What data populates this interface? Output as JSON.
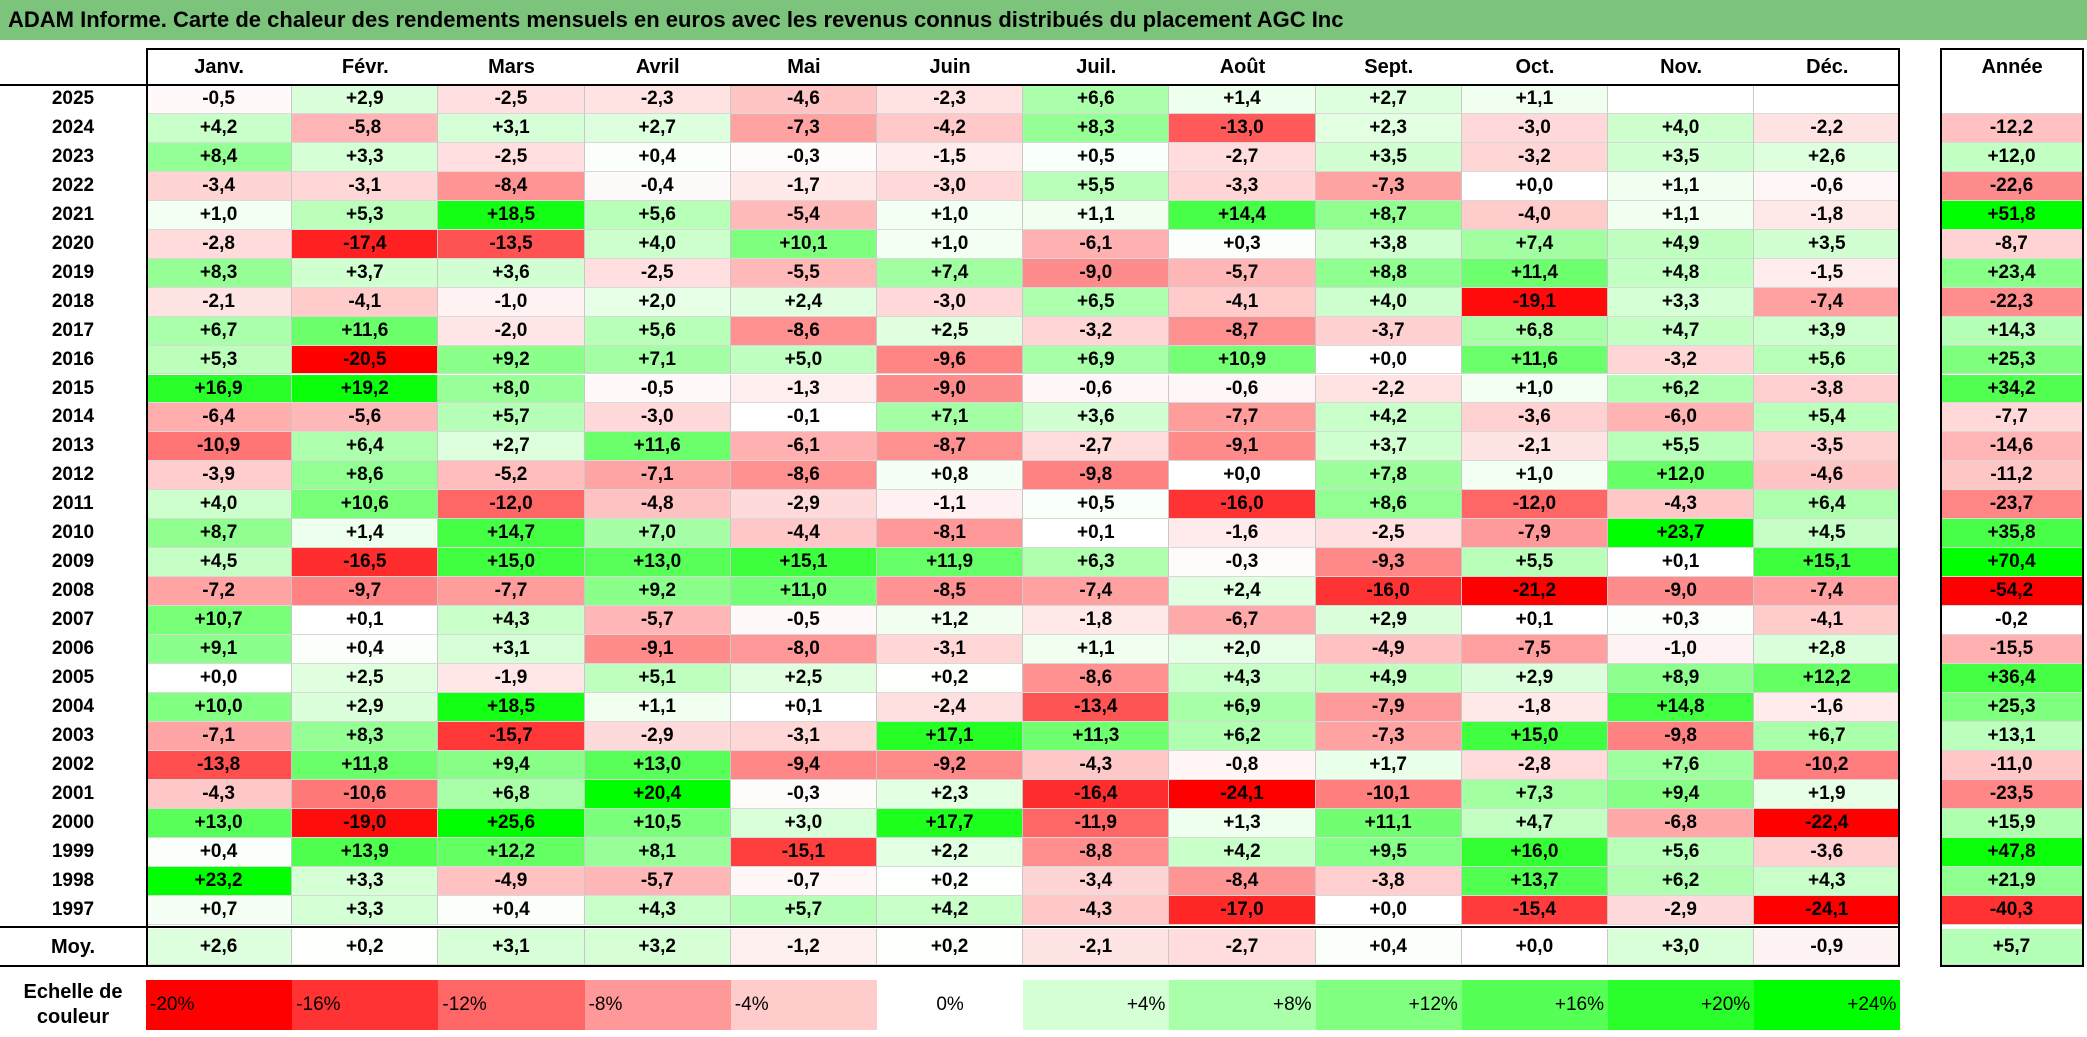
{
  "title": "ADAM Informe. Carte de chaleur des rendements mensuels en euros avec les revenus connus distribués du placement AGC Inc",
  "chart_data": {
    "type": "heatmap",
    "title": "ADAM Informe. Carte de chaleur des rendements mensuels en euros avec les revenus connus distribués du placement AGC Inc",
    "months": [
      "Janv.",
      "Févr.",
      "Mars",
      "Avril",
      "Mai",
      "Juin",
      "Juil.",
      "Août",
      "Sept.",
      "Oct.",
      "Nov.",
      "Déc."
    ],
    "year_header": "Année",
    "rows": [
      {
        "year": "2025",
        "values": [
          "-0,5",
          "+2,9",
          "-2,5",
          "-2,3",
          "-4,6",
          "-2,3",
          "+6,6",
          "+1,4",
          "+2,7",
          "+1,1",
          "",
          ""
        ],
        "annual": ""
      },
      {
        "year": "2024",
        "values": [
          "+4,2",
          "-5,8",
          "+3,1",
          "+2,7",
          "-7,3",
          "-4,2",
          "+8,3",
          "-13,0",
          "+2,3",
          "-3,0",
          "+4,0",
          "-2,2"
        ],
        "annual": "-12,2"
      },
      {
        "year": "2023",
        "values": [
          "+8,4",
          "+3,3",
          "-2,5",
          "+0,4",
          "-0,3",
          "-1,5",
          "+0,5",
          "-2,7",
          "+3,5",
          "-3,2",
          "+3,5",
          "+2,6"
        ],
        "annual": "+12,0"
      },
      {
        "year": "2022",
        "values": [
          "-3,4",
          "-3,1",
          "-8,4",
          "-0,4",
          "-1,7",
          "-3,0",
          "+5,5",
          "-3,3",
          "-7,3",
          "+0,0",
          "+1,1",
          "-0,6"
        ],
        "annual": "-22,6"
      },
      {
        "year": "2021",
        "values": [
          "+1,0",
          "+5,3",
          "+18,5",
          "+5,6",
          "-5,4",
          "+1,0",
          "+1,1",
          "+14,4",
          "+8,7",
          "-4,0",
          "+1,1",
          "-1,8"
        ],
        "annual": "+51,8"
      },
      {
        "year": "2020",
        "values": [
          "-2,8",
          "-17,4",
          "-13,5",
          "+4,0",
          "+10,1",
          "+1,0",
          "-6,1",
          "+0,3",
          "+3,8",
          "+7,4",
          "+4,9",
          "+3,5"
        ],
        "annual": "-8,7"
      },
      {
        "year": "2019",
        "values": [
          "+8,3",
          "+3,7",
          "+3,6",
          "-2,5",
          "-5,5",
          "+7,4",
          "-9,0",
          "-5,7",
          "+8,8",
          "+11,4",
          "+4,8",
          "-1,5"
        ],
        "annual": "+23,4"
      },
      {
        "year": "2018",
        "values": [
          "-2,1",
          "-4,1",
          "-1,0",
          "+2,0",
          "+2,4",
          "-3,0",
          "+6,5",
          "-4,1",
          "+4,0",
          "-19,1",
          "+3,3",
          "-7,4"
        ],
        "annual": "-22,3"
      },
      {
        "year": "2017",
        "values": [
          "+6,7",
          "+11,6",
          "-2,0",
          "+5,6",
          "-8,6",
          "+2,5",
          "-3,2",
          "-8,7",
          "-3,7",
          "+6,8",
          "+4,7",
          "+3,9"
        ],
        "annual": "+14,3"
      },
      {
        "year": "2016",
        "values": [
          "+5,3",
          "-20,5",
          "+9,2",
          "+7,1",
          "+5,0",
          "-9,6",
          "+6,9",
          "+10,9",
          "+0,0",
          "+11,6",
          "-3,2",
          "+5,6"
        ],
        "annual": "+25,3"
      },
      {
        "year": "2015",
        "values": [
          "+16,9",
          "+19,2",
          "+8,0",
          "-0,5",
          "-1,3",
          "-9,0",
          "-0,6",
          "-0,6",
          "-2,2",
          "+1,0",
          "+6,2",
          "-3,8"
        ],
        "annual": "+34,2"
      },
      {
        "year": "2014",
        "values": [
          "-6,4",
          "-5,6",
          "+5,7",
          "-3,0",
          "-0,1",
          "+7,1",
          "+3,6",
          "-7,7",
          "+4,2",
          "-3,6",
          "-6,0",
          "+5,4"
        ],
        "annual": "-7,7"
      },
      {
        "year": "2013",
        "values": [
          "-10,9",
          "+6,4",
          "+2,7",
          "+11,6",
          "-6,1",
          "-8,7",
          "-2,7",
          "-9,1",
          "+3,7",
          "-2,1",
          "+5,5",
          "-3,5"
        ],
        "annual": "-14,6"
      },
      {
        "year": "2012",
        "values": [
          "-3,9",
          "+8,6",
          "-5,2",
          "-7,1",
          "-8,6",
          "+0,8",
          "-9,8",
          "+0,0",
          "+7,8",
          "+1,0",
          "+12,0",
          "-4,6"
        ],
        "annual": "-11,2"
      },
      {
        "year": "2011",
        "values": [
          "+4,0",
          "+10,6",
          "-12,0",
          "-4,8",
          "-2,9",
          "-1,1",
          "+0,5",
          "-16,0",
          "+8,6",
          "-12,0",
          "-4,3",
          "+6,4"
        ],
        "annual": "-23,7"
      },
      {
        "year": "2010",
        "values": [
          "+8,7",
          "+1,4",
          "+14,7",
          "+7,0",
          "-4,4",
          "-8,1",
          "+0,1",
          "-1,6",
          "-2,5",
          "-7,9",
          "+23,7",
          "+4,5"
        ],
        "annual": "+35,8"
      },
      {
        "year": "2009",
        "values": [
          "+4,5",
          "-16,5",
          "+15,0",
          "+13,0",
          "+15,1",
          "+11,9",
          "+6,3",
          "-0,3",
          "-9,3",
          "+5,5",
          "+0,1",
          "+15,1"
        ],
        "annual": "+70,4"
      },
      {
        "year": "2008",
        "values": [
          "-7,2",
          "-9,7",
          "-7,7",
          "+9,2",
          "+11,0",
          "-8,5",
          "-7,4",
          "+2,4",
          "-16,0",
          "-21,2",
          "-9,0",
          "-7,4"
        ],
        "annual": "-54,2"
      },
      {
        "year": "2007",
        "values": [
          "+10,7",
          "+0,1",
          "+4,3",
          "-5,7",
          "-0,5",
          "+1,2",
          "-1,8",
          "-6,7",
          "+2,9",
          "+0,1",
          "+0,3",
          "-4,1"
        ],
        "annual": "-0,2"
      },
      {
        "year": "2006",
        "values": [
          "+9,1",
          "+0,4",
          "+3,1",
          "-9,1",
          "-8,0",
          "-3,1",
          "+1,1",
          "+2,0",
          "-4,9",
          "-7,5",
          "-1,0",
          "+2,8"
        ],
        "annual": "-15,5"
      },
      {
        "year": "2005",
        "values": [
          "+0,0",
          "+2,5",
          "-1,9",
          "+5,1",
          "+2,5",
          "+0,2",
          "-8,6",
          "+4,3",
          "+4,9",
          "+2,9",
          "+8,9",
          "+12,2"
        ],
        "annual": "+36,4"
      },
      {
        "year": "2004",
        "values": [
          "+10,0",
          "+2,9",
          "+18,5",
          "+1,1",
          "+0,1",
          "-2,4",
          "-13,4",
          "+6,9",
          "-7,9",
          "-1,8",
          "+14,8",
          "-1,6"
        ],
        "annual": "+25,3"
      },
      {
        "year": "2003",
        "values": [
          "-7,1",
          "+8,3",
          "-15,7",
          "-2,9",
          "-3,1",
          "+17,1",
          "+11,3",
          "+6,2",
          "-7,3",
          "+15,0",
          "-9,8",
          "+6,7"
        ],
        "annual": "+13,1"
      },
      {
        "year": "2002",
        "values": [
          "-13,8",
          "+11,8",
          "+9,4",
          "+13,0",
          "-9,4",
          "-9,2",
          "-4,3",
          "-0,8",
          "+1,7",
          "-2,8",
          "+7,6",
          "-10,2"
        ],
        "annual": "-11,0"
      },
      {
        "year": "2001",
        "values": [
          "-4,3",
          "-10,6",
          "+6,8",
          "+20,4",
          "-0,3",
          "+2,3",
          "-16,4",
          "-24,1",
          "-10,1",
          "+7,3",
          "+9,4",
          "+1,9"
        ],
        "annual": "-23,5"
      },
      {
        "year": "2000",
        "values": [
          "+13,0",
          "-19,0",
          "+25,6",
          "+10,5",
          "+3,0",
          "+17,7",
          "-11,9",
          "+1,3",
          "+11,1",
          "+4,7",
          "-6,8",
          "-22,4"
        ],
        "annual": "+15,9"
      },
      {
        "year": "1999",
        "values": [
          "+0,4",
          "+13,9",
          "+12,2",
          "+8,1",
          "-15,1",
          "+2,2",
          "-8,8",
          "+4,2",
          "+9,5",
          "+16,0",
          "+5,6",
          "-3,6"
        ],
        "annual": "+47,8"
      },
      {
        "year": "1998",
        "values": [
          "+23,2",
          "+3,3",
          "-4,9",
          "-5,7",
          "-0,7",
          "+0,2",
          "-3,4",
          "-8,4",
          "-3,8",
          "+13,7",
          "+6,2",
          "+4,3"
        ],
        "annual": "+21,9"
      },
      {
        "year": "1997",
        "values": [
          "+0,7",
          "+3,3",
          "+0,4",
          "+4,3",
          "+5,7",
          "+4,2",
          "-4,3",
          "-17,0",
          "+0,0",
          "-15,4",
          "-2,9",
          "-24,1"
        ],
        "annual": "-40,3"
      }
    ],
    "average": {
      "label": "Moy.",
      "values": [
        "+2,6",
        "+0,2",
        "+3,1",
        "+3,2",
        "-1,2",
        "+0,2",
        "-2,1",
        "-2,7",
        "+0,4",
        "+0,0",
        "+3,0",
        "-0,9"
      ],
      "annual": "+5,7"
    },
    "scale": {
      "label": "Echelle de couleur",
      "items": [
        {
          "label": "-20%",
          "value": -20,
          "color": "#ff0000"
        },
        {
          "label": "-16%",
          "value": -16,
          "color": "#ff3333"
        },
        {
          "label": "-12%",
          "value": -12,
          "color": "#ff6666"
        },
        {
          "label": "-8%",
          "value": -8,
          "color": "#ff9999"
        },
        {
          "label": "-4%",
          "value": -4,
          "color": "#ffcccc"
        },
        {
          "label": "0%",
          "value": 0,
          "color": "#ffffff"
        },
        {
          "label": "+4%",
          "value": 4,
          "color": "#d5ffd5"
        },
        {
          "label": "+8%",
          "value": 8,
          "color": "#aaffaa"
        },
        {
          "label": "+12%",
          "value": 12,
          "color": "#80ff80"
        },
        {
          "label": "+16%",
          "value": 16,
          "color": "#55ff55"
        },
        {
          "label": "+20%",
          "value": 20,
          "color": "#2bff2b"
        },
        {
          "label": "+24%",
          "value": 24,
          "color": "#00ff00"
        }
      ]
    }
  }
}
